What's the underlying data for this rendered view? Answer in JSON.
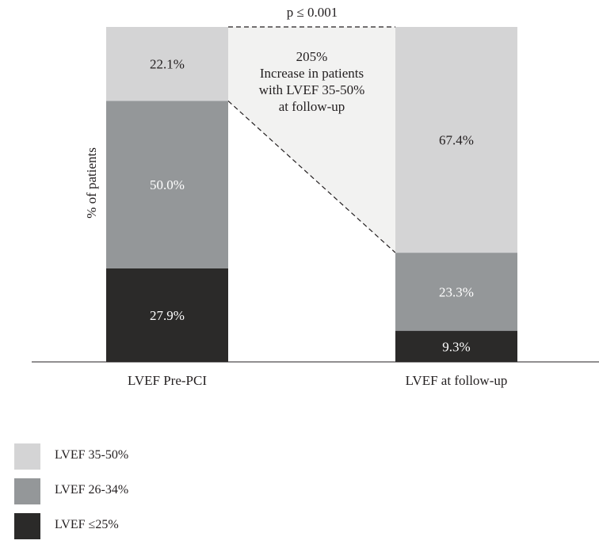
{
  "chart_data": {
    "type": "bar",
    "stacked": true,
    "percent_stacked": true,
    "categories": [
      "LVEF Pre-PCI",
      "LVEF at follow-up"
    ],
    "series": [
      {
        "name": "LVEF ≤25%",
        "values": [
          27.9,
          9.3
        ],
        "labels": [
          "27.9%",
          "9.3%"
        ],
        "color": "#2b2a29",
        "label_color": "#ffffff"
      },
      {
        "name": "LVEF 26-34%",
        "values": [
          50.0,
          23.3
        ],
        "labels": [
          "50.0%",
          "23.3%"
        ],
        "color": "#949799",
        "label_color": "#ffffff"
      },
      {
        "name": "LVEF 35-50%",
        "values": [
          22.1,
          67.4
        ],
        "labels": [
          "22.1%",
          "67.4%"
        ],
        "color": "#d4d4d5",
        "label_color": "#231f20"
      }
    ],
    "ylabel": "% of patients",
    "xlabel": "",
    "ylim": [
      0,
      100
    ],
    "grid": false,
    "legend_position": "bottom-left",
    "annotation": {
      "significance": "p ≤ 0.001",
      "lines": [
        "205%",
        "Increase in patients",
        "with LVEF 35-50%",
        "at follow-up"
      ],
      "fill_color": "#f2f2f1"
    }
  }
}
